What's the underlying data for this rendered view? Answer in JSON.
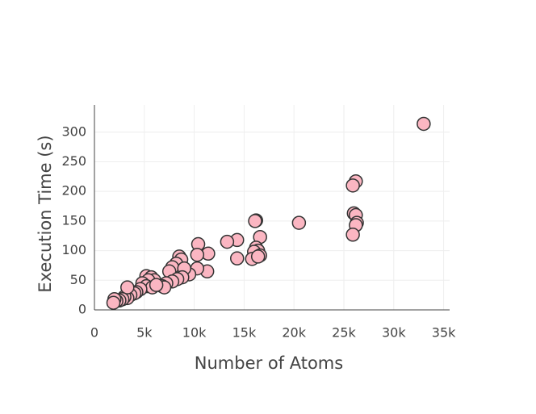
{
  "chart_data": {
    "type": "scatter",
    "x_label": "Number of Atoms",
    "y_label": "Execution Time (s)",
    "x": [
      33000,
      26200,
      25900,
      26000,
      26200,
      26300,
      26200,
      25900,
      20500,
      16200,
      16100,
      16600,
      16200,
      16400,
      16000,
      16600,
      15800,
      16400,
      14300,
      13300,
      14300,
      10400,
      11400,
      10300,
      11300,
      10300,
      9500,
      8500,
      8700,
      8200,
      7800,
      7500,
      9000,
      8800,
      8300,
      7800,
      7200,
      6800,
      7000,
      5200,
      5700,
      6000,
      5400,
      4800,
      5200,
      5800,
      6200,
      4600,
      4200,
      4000,
      3600,
      3300,
      3000,
      3300,
      2800,
      2500,
      2200,
      2000,
      1900
    ],
    "values": [
      314,
      217,
      210,
      163,
      160,
      147,
      143,
      127,
      147,
      151,
      150,
      123,
      105,
      100,
      98,
      92,
      86,
      90,
      118,
      115,
      87,
      111,
      95,
      93,
      65,
      70,
      60,
      90,
      85,
      78,
      72,
      65,
      70,
      55,
      52,
      48,
      45,
      40,
      38,
      57,
      55,
      50,
      50,
      45,
      40,
      38,
      42,
      35,
      30,
      28,
      25,
      20,
      22,
      38,
      18,
      16,
      15,
      18,
      12
    ],
    "color": "#fbb6c2",
    "edge_color": "#333333",
    "xlim": [
      0,
      35600
    ],
    "ylim": [
      0,
      346
    ],
    "xticks": [
      0,
      {
        "value": 5000,
        "label": "5k"
      },
      {
        "value": 10000,
        "label": "10k"
      },
      {
        "value": 15000,
        "label": "15k"
      },
      {
        "value": 20000,
        "label": "20k"
      },
      {
        "value": 25000,
        "label": "25k"
      },
      {
        "value": 30000,
        "label": "30k"
      },
      {
        "value": 35000,
        "label": "35k"
      }
    ],
    "yticks": [
      0,
      50,
      100,
      150,
      200,
      250,
      300
    ],
    "grid": true
  }
}
